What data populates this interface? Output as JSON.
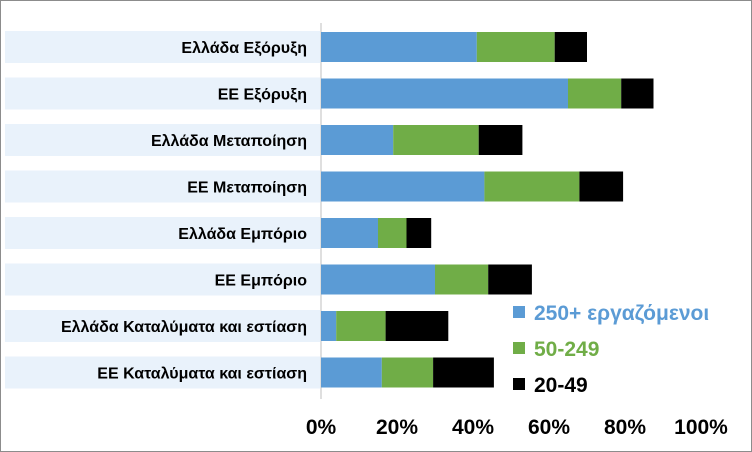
{
  "chart_data": {
    "type": "bar",
    "orientation": "horizontal",
    "stacked": true,
    "categories": [
      "Ελλάδα Εξόρυξη",
      "ΕΕ Εξόρυξη",
      "Ελλάδα Μεταποίηση",
      "ΕΕ Μεταποίηση",
      "Ελλάδα Εμπόριο",
      "ΕΕ Εμπόριο",
      "Ελλάδα Καταλύματα και εστίαση",
      "ΕΕ Καταλύματα και εστίαση"
    ],
    "series": [
      {
        "name": "250+ εργαζόμενοι",
        "color": "#5b9bd5",
        "values": [
          41,
          65,
          19,
          43,
          15,
          30,
          4,
          16
        ]
      },
      {
        "name": "50-249",
        "color": "#70ad47",
        "values": [
          20.5,
          14,
          22.5,
          25,
          7.5,
          14,
          13,
          13.5
        ]
      },
      {
        "name": "20-49",
        "color": "#000000",
        "values": [
          8.5,
          8.5,
          11.5,
          11.5,
          6.5,
          11.5,
          16.5,
          16
        ]
      }
    ],
    "xlim": [
      0,
      100
    ],
    "x_ticks": [
      "0%",
      "20%",
      "40%",
      "60%",
      "80%",
      "100%"
    ],
    "grid": false,
    "legend_position": "bottom-right",
    "category_band_color": "#e9f2fb"
  }
}
